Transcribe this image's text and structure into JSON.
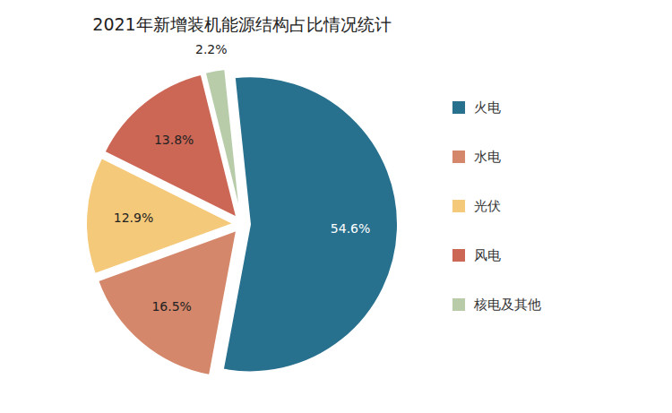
{
  "chart_data": {
    "type": "pie",
    "title": "2021年新增装机能源结构占比情况统计",
    "categories": [
      "火电",
      "水电",
      "光伏",
      "风电",
      "核电及其他"
    ],
    "values": [
      54.6,
      16.5,
      12.9,
      13.8,
      2.2
    ],
    "value_labels": [
      "54.6%",
      "16.5%",
      "12.9%",
      "13.8%",
      "2.2%"
    ],
    "colors": [
      "#27708e",
      "#d4876a",
      "#f5c97a",
      "#cc6655",
      "#b8ccaa"
    ],
    "data_labels": true,
    "legend": "right"
  }
}
